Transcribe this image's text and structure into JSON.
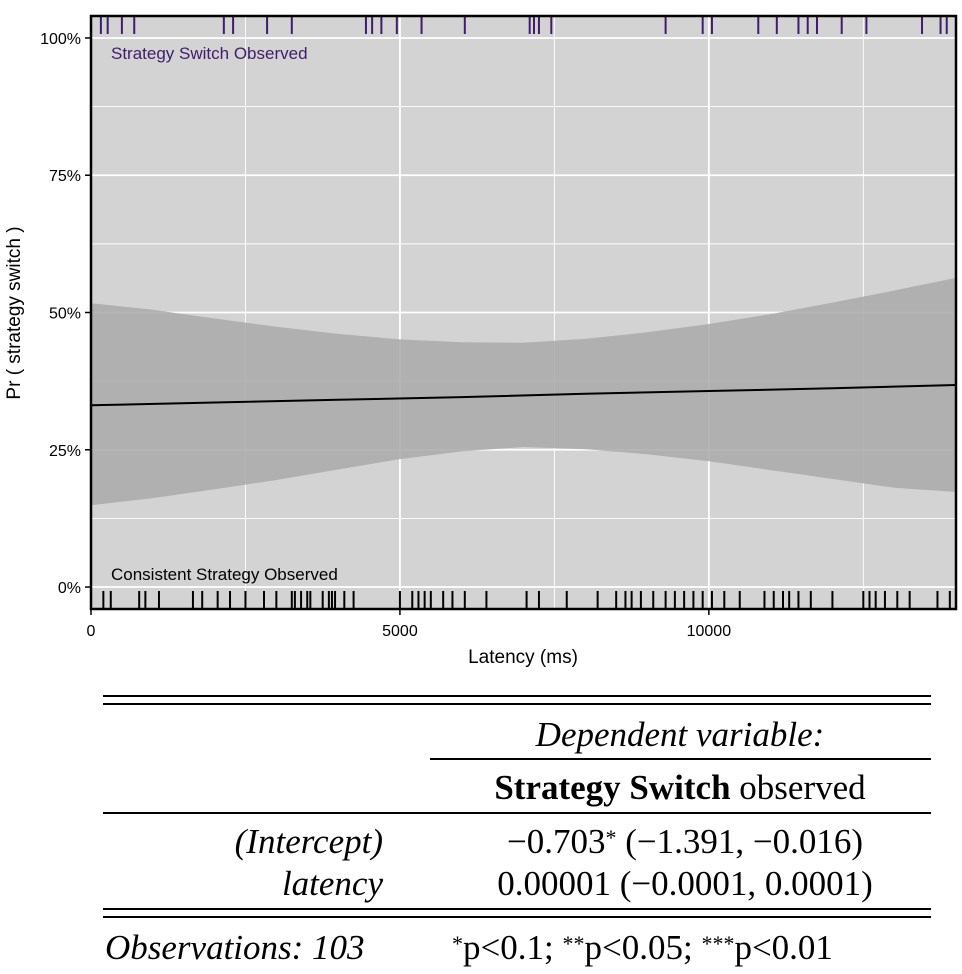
{
  "chart_data": {
    "type": "line",
    "xlabel": "Latency (ms)",
    "ylabel": "Pr ( strategy switch )",
    "xlim": [
      0,
      14000
    ],
    "ylim": [
      -0.04,
      1.04
    ],
    "x_ticks": [
      0,
      5000,
      10000
    ],
    "x_tick_labels": [
      "0",
      "5000",
      "10000"
    ],
    "y_ticks": [
      0,
      0.25,
      0.5,
      0.75,
      1.0
    ],
    "y_tick_labels": [
      "0%",
      "25%",
      "50%",
      "75%",
      "100%"
    ],
    "x_minor_gridlines": [
      2500,
      7500,
      12500
    ],
    "y_minor_gridlines": [
      0.125,
      0.375,
      0.625,
      0.875
    ],
    "grid": true,
    "fit_line": {
      "x": [
        0,
        2000,
        4000,
        6000,
        8000,
        10000,
        12000,
        14000
      ],
      "y": [
        0.331,
        0.336,
        0.341,
        0.346,
        0.352,
        0.357,
        0.362,
        0.368
      ]
    },
    "confidence_band": {
      "x": [
        0,
        1000,
        2000,
        3000,
        4000,
        5000,
        6000,
        7000,
        8000,
        9000,
        10000,
        11000,
        12000,
        13000,
        14000
      ],
      "upper": [
        0.517,
        0.505,
        0.489,
        0.474,
        0.461,
        0.451,
        0.446,
        0.445,
        0.452,
        0.464,
        0.479,
        0.497,
        0.518,
        0.54,
        0.563
      ],
      "lower": [
        0.149,
        0.162,
        0.178,
        0.195,
        0.214,
        0.233,
        0.247,
        0.255,
        0.251,
        0.242,
        0.229,
        0.213,
        0.197,
        0.181,
        0.173
      ]
    },
    "annotations": {
      "top_label": "Strategy Switch Observed",
      "bottom_label": "Consistent Strategy Observed"
    },
    "rug_top_x": [
      160,
      270,
      500,
      700,
      2150,
      2300,
      2850,
      3250,
      4450,
      4550,
      4700,
      4950,
      5350,
      6050,
      7100,
      7170,
      7250,
      7450,
      9300,
      9900,
      10050,
      10800,
      11100,
      11450,
      11600,
      11750,
      12150,
      12550,
      13450,
      13750,
      13850
    ],
    "rug_bottom_x": [
      200,
      320,
      780,
      880,
      1100,
      1650,
      1800,
      2050,
      2250,
      2500,
      2800,
      3000,
      3250,
      3300,
      3400,
      3500,
      3550,
      3750,
      3850,
      3900,
      3950,
      4100,
      4250,
      5000,
      5200,
      5300,
      5400,
      5500,
      5700,
      5850,
      6050,
      6400,
      7050,
      7250,
      7700,
      8200,
      8500,
      8650,
      8750,
      8900,
      9100,
      9300,
      9450,
      9600,
      9750,
      9900,
      10050,
      10250,
      10500,
      10900,
      11050,
      11200,
      11300,
      11450,
      11650,
      12000,
      12500,
      12600,
      12700,
      12850,
      13050,
      13250,
      13700,
      13900
    ],
    "colors": {
      "panel": "#d3d3d3",
      "band": "#a9a9a9",
      "grid": "#ffffff",
      "line": "#000000",
      "rug_top": "#3f1d6b",
      "rug_bottom": "#000000"
    }
  },
  "table": {
    "dep_var_label": "Dependent variable:",
    "dep_var_bold": "Strategy Switch",
    "dep_var_rest": " observed",
    "rows": [
      {
        "label": "(Intercept)",
        "coef": "−0.703",
        "sig": "*",
        "ci": " (−1.391, −0.016)"
      },
      {
        "label": "latency",
        "coef": "0.00001 (−0.0001, 0.0001)",
        "sig": "",
        "ci": ""
      }
    ],
    "observations": "Observations: 103",
    "note": {
      "s1": "*",
      "t1": "p<0.1; ",
      "s2": "**",
      "t2": "p<0.05; ",
      "s3": "***",
      "t3": "p<0.01"
    }
  }
}
